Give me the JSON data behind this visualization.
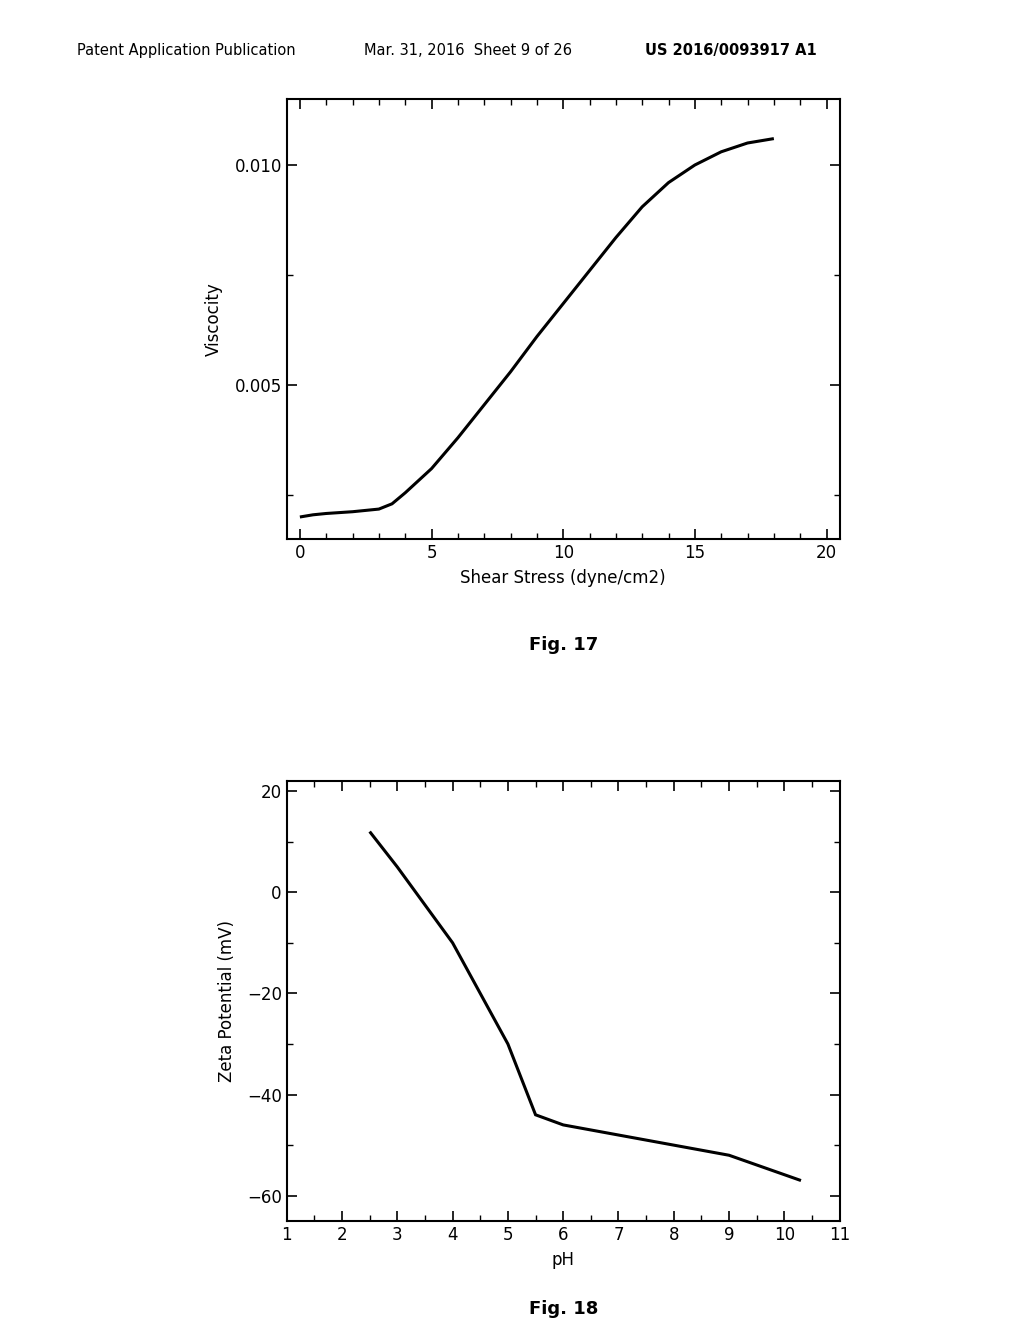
{
  "fig17": {
    "x": [
      0.0,
      0.5,
      1.0,
      2.0,
      3.0,
      3.5,
      4.0,
      5.0,
      6.0,
      7.0,
      8.0,
      9.0,
      10.0,
      11.0,
      12.0,
      13.0,
      14.0,
      15.0,
      16.0,
      17.0,
      18.0
    ],
    "y": [
      0.002,
      0.00205,
      0.00208,
      0.00212,
      0.00218,
      0.0023,
      0.00255,
      0.0031,
      0.0038,
      0.00455,
      0.0053,
      0.0061,
      0.00685,
      0.0076,
      0.00835,
      0.00905,
      0.0096,
      0.01,
      0.0103,
      0.0105,
      0.0106
    ],
    "xlabel": "Shear Stress (dyne/cm2)",
    "ylabel": "Viscocity",
    "figname": "Fig. 17",
    "xlim": [
      -0.5,
      20.5
    ],
    "ylim": [
      0.0015,
      0.0115
    ],
    "xticks": [
      0,
      5,
      10,
      15,
      20
    ],
    "yticks": [
      0.005,
      0.01
    ],
    "xminor": 1,
    "yminor": 0.0025
  },
  "fig18": {
    "x": [
      2.5,
      3.0,
      4.0,
      5.0,
      5.5,
      6.0,
      6.5,
      7.0,
      7.5,
      8.0,
      9.0,
      10.3
    ],
    "y": [
      12,
      5,
      -10,
      -30,
      -44,
      -46,
      -47,
      -48,
      -49,
      -50,
      -52,
      -57
    ],
    "xlabel": "pH",
    "ylabel": "Zeta Potential (mV)",
    "figname": "Fig. 18",
    "xlim": [
      1,
      11
    ],
    "ylim": [
      -65,
      22
    ],
    "xticks": [
      1,
      2,
      3,
      4,
      5,
      6,
      7,
      8,
      9,
      10,
      11
    ],
    "yticks": [
      -60,
      -40,
      -20,
      0,
      20
    ],
    "xminor": 0.5,
    "yminor": 10
  },
  "header_left": "Patent Application Publication",
  "header_mid": "Mar. 31, 2016  Sheet 9 of 26",
  "header_right": "US 2016/0093917 A1",
  "background_color": "#ffffff",
  "line_color": "#000000",
  "line_width": 2.2
}
